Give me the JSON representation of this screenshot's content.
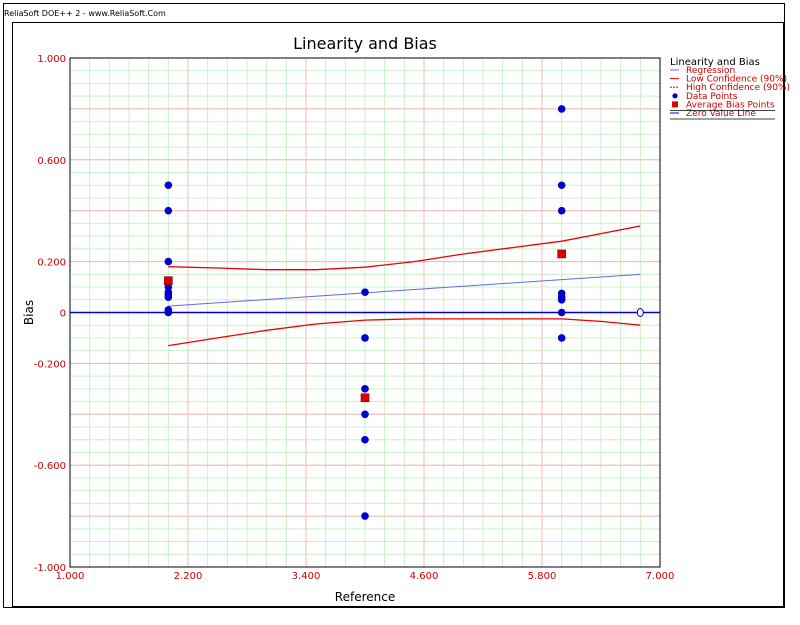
{
  "app": {
    "caption": "ReliaSoft DOE++ 2 - www.ReliaSoft.Com"
  },
  "colors": {
    "grid_major": "#f4b8b8",
    "grid_minor": "#c8f0c8",
    "regression": "#6666ee",
    "confidence": "#ee0000",
    "data_points": "#0000cc",
    "avg_bias": "#dd0000",
    "zero_line": "#0000cc",
    "tick_labels": "#cc0000"
  },
  "chart_data": {
    "type": "scatter",
    "title": "Linearity and Bias",
    "xlabel": "Reference",
    "ylabel": "Bias",
    "xlim": [
      1.0,
      7.0
    ],
    "ylim": [
      -1.0,
      1.0
    ],
    "x_ticks": [
      "1.000",
      "2.200",
      "3.400",
      "4.600",
      "5.800",
      "7.000"
    ],
    "y_ticks": [
      "1.000",
      "0.600",
      "0.200",
      "0",
      "-0.200",
      "-0.600",
      "-1.000"
    ],
    "y_tick_values": [
      1.0,
      0.6,
      0.2,
      0.0,
      -0.2,
      -0.6,
      -1.0
    ],
    "x_tick_values": [
      1.0,
      2.2,
      3.4,
      4.6,
      5.8,
      7.0
    ],
    "grid": true,
    "legend_position": "right",
    "legend_title": "Linearity and Bias",
    "legend": [
      {
        "label": "Regression",
        "kind": "line",
        "color": "#6666ee"
      },
      {
        "label": "Low Confidence (90%)",
        "kind": "line",
        "color": "#ee0000"
      },
      {
        "label": "High Confidence (90%)",
        "kind": "dotted",
        "color": "#ee0000"
      },
      {
        "label": "Data Points",
        "kind": "circle",
        "color": "#0000cc"
      },
      {
        "label": "Average Bias Points",
        "kind": "square",
        "color": "#dd0000"
      },
      {
        "label": "Zero Value Line",
        "kind": "line",
        "color": "#0000cc"
      }
    ],
    "data_points": [
      {
        "x": 2.0,
        "y": 0.5
      },
      {
        "x": 2.0,
        "y": 0.4
      },
      {
        "x": 2.0,
        "y": 0.2
      },
      {
        "x": 2.0,
        "y": 0.1
      },
      {
        "x": 2.0,
        "y": 0.08
      },
      {
        "x": 2.0,
        "y": 0.07
      },
      {
        "x": 2.0,
        "y": 0.06
      },
      {
        "x": 2.0,
        "y": 0.01
      },
      {
        "x": 2.0,
        "y": 0.0
      },
      {
        "x": 4.0,
        "y": 0.08
      },
      {
        "x": 4.0,
        "y": -0.1
      },
      {
        "x": 4.0,
        "y": -0.3
      },
      {
        "x": 4.0,
        "y": -0.4
      },
      {
        "x": 4.0,
        "y": -0.5
      },
      {
        "x": 4.0,
        "y": -0.8
      },
      {
        "x": 6.0,
        "y": 0.8
      },
      {
        "x": 6.0,
        "y": 0.5
      },
      {
        "x": 6.0,
        "y": 0.4
      },
      {
        "x": 6.0,
        "y": 0.075
      },
      {
        "x": 6.0,
        "y": 0.06
      },
      {
        "x": 6.0,
        "y": 0.05
      },
      {
        "x": 6.0,
        "y": 0.0
      },
      {
        "x": 6.0,
        "y": -0.1
      }
    ],
    "average_bias_points": [
      {
        "x": 2.0,
        "y": 0.125
      },
      {
        "x": 4.0,
        "y": -0.335
      },
      {
        "x": 6.0,
        "y": 0.23
      }
    ],
    "regression": [
      {
        "x": 2.0,
        "y": 0.025
      },
      {
        "x": 6.8,
        "y": 0.15
      }
    ],
    "low_confidence": [
      {
        "x": 2.0,
        "y": -0.13
      },
      {
        "x": 2.5,
        "y": -0.1
      },
      {
        "x": 3.0,
        "y": -0.07
      },
      {
        "x": 3.5,
        "y": -0.045
      },
      {
        "x": 4.0,
        "y": -0.03
      },
      {
        "x": 4.5,
        "y": -0.025
      },
      {
        "x": 5.0,
        "y": -0.025
      },
      {
        "x": 5.5,
        "y": -0.025
      },
      {
        "x": 6.0,
        "y": -0.025
      },
      {
        "x": 6.4,
        "y": -0.035
      },
      {
        "x": 6.8,
        "y": -0.05
      }
    ],
    "high_confidence": [
      {
        "x": 2.0,
        "y": 0.18
      },
      {
        "x": 2.5,
        "y": 0.175
      },
      {
        "x": 3.0,
        "y": 0.168
      },
      {
        "x": 3.5,
        "y": 0.168
      },
      {
        "x": 4.0,
        "y": 0.178
      },
      {
        "x": 4.5,
        "y": 0.2
      },
      {
        "x": 5.0,
        "y": 0.23
      },
      {
        "x": 5.5,
        "y": 0.255
      },
      {
        "x": 6.0,
        "y": 0.28
      },
      {
        "x": 6.4,
        "y": 0.31
      },
      {
        "x": 6.8,
        "y": 0.34
      }
    ],
    "zero_line": {
      "y": 0.0,
      "x_end": 6.8
    }
  }
}
